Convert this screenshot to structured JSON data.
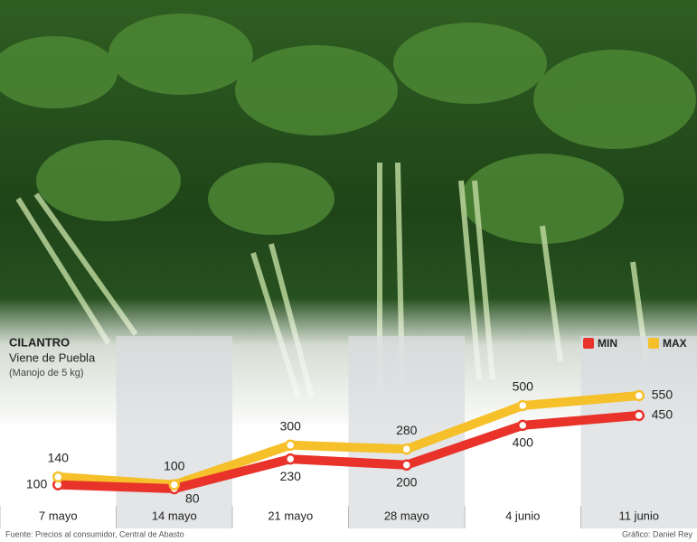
{
  "chart_data": {
    "type": "line",
    "title": "CILANTRO",
    "subtitle": "Viene de Puebla",
    "unit_note": "(Manojo de 5 kg)",
    "categories": [
      "7 mayo",
      "14 mayo",
      "21 mayo",
      "28 mayo",
      "4 junio",
      "11 junio"
    ],
    "series": [
      {
        "name": "MIN",
        "color": "#e8322a",
        "values": [
          100,
          80,
          230,
          200,
          400,
          450
        ]
      },
      {
        "name": "MAX",
        "color": "#f5c02a",
        "values": [
          140,
          100,
          300,
          280,
          500,
          550
        ]
      }
    ],
    "source": "Fuente: Precios al consumidor, Central de Abasto",
    "credit": "Gráfico: Daniel Rey"
  }
}
